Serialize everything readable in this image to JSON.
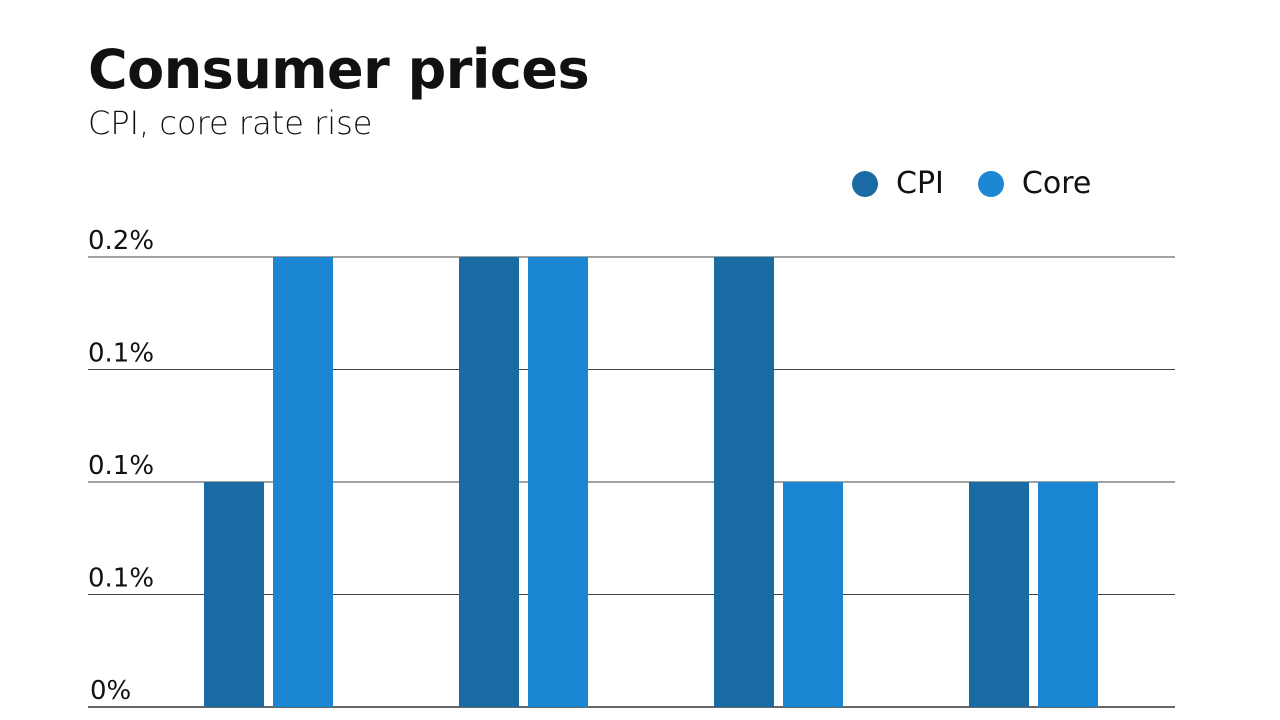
{
  "chart_data": {
    "type": "bar",
    "title": "Consumer prices",
    "subtitle": "CPI, core rate rise",
    "categories": [
      "",
      "",
      "",
      ""
    ],
    "series": [
      {
        "name": "CPI",
        "color": "#1a6aa3",
        "values": [
          0.1,
          0.2,
          0.2,
          0.1
        ]
      },
      {
        "name": "Core",
        "color": "#1b87d3",
        "values": [
          0.2,
          0.2,
          0.1,
          0.1
        ]
      }
    ],
    "yticks": [
      0,
      0.05,
      0.1,
      0.15,
      0.2
    ],
    "ytick_labels": [
      "0%",
      "0.1%",
      "0.1%",
      "0.1%",
      "0.2%"
    ],
    "ylim": [
      0,
      0.2
    ],
    "grid": true,
    "legend": "top-right"
  }
}
